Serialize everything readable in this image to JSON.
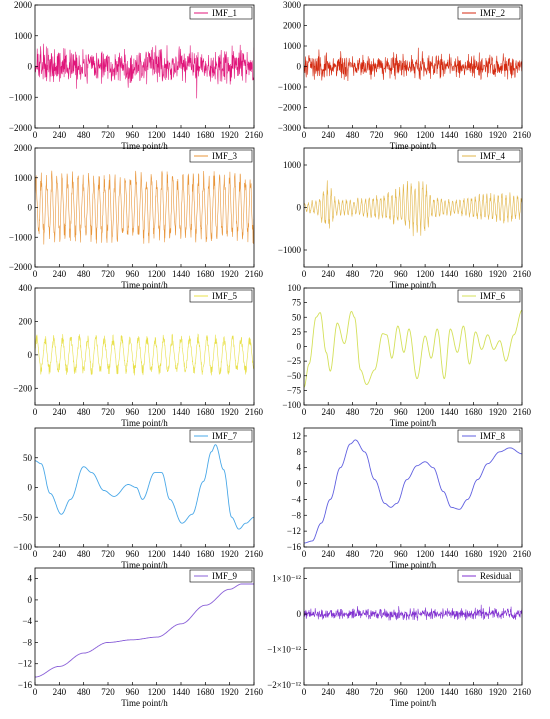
{
  "chart_data": [
    {
      "type": "line",
      "name": "IMF_1",
      "legend": "IMF_1",
      "color": "#e0157a",
      "xlabel": "Time point/h",
      "xlim": [
        0,
        2160
      ],
      "xticks": [
        0,
        240,
        480,
        720,
        960,
        1200,
        1440,
        1680,
        1920,
        2160
      ],
      "ylim": [
        -2000,
        2000
      ],
      "yticks": [
        -2000,
        -1000,
        0,
        1000,
        2000
      ],
      "yticklabels": [
        "−2000",
        "−1000",
        "0",
        "1000",
        "2000"
      ],
      "shape": "noise",
      "amplitude": 650,
      "legend_pos": "top-right"
    },
    {
      "type": "line",
      "name": "IMF_2",
      "legend": "IMF_2",
      "color": "#d42a10",
      "xlabel": "Time point/h",
      "xlim": [
        0,
        2160
      ],
      "xticks": [
        0,
        240,
        480,
        720,
        960,
        1200,
        1440,
        1680,
        1920,
        2160
      ],
      "ylim": [
        -3000,
        3000
      ],
      "yticks": [
        -3000,
        -2000,
        -1000,
        0,
        1000,
        2000,
        3000
      ],
      "yticklabels": [
        "−3000",
        "−2000",
        "−1000",
        "0",
        "1000",
        "2000",
        "3000"
      ],
      "shape": "noise",
      "amplitude": 700,
      "legend_pos": "top-right"
    },
    {
      "type": "line",
      "name": "IMF_3",
      "legend": "IMF_3",
      "color": "#e8953a",
      "xlabel": "Time point/h",
      "xlim": [
        0,
        2160
      ],
      "xticks": [
        0,
        240,
        480,
        720,
        960,
        1200,
        1440,
        1680,
        1920,
        2160
      ],
      "ylim": [
        -2000,
        2000
      ],
      "yticks": [
        -2000,
        -1000,
        0,
        1000,
        2000
      ],
      "yticklabels": [
        "−2000",
        "−1000",
        "0",
        "1000",
        "2000"
      ],
      "shape": "osc",
      "period": 52,
      "amplitude": 1100,
      "legend_pos": "top-right"
    },
    {
      "type": "line",
      "name": "IMF_4",
      "legend": "IMF_4",
      "color": "#e2b64a",
      "xlabel": "Time point/h",
      "xlim": [
        0,
        2160
      ],
      "xticks": [
        0,
        240,
        480,
        720,
        960,
        1200,
        1440,
        1680,
        1920,
        2160
      ],
      "ylim": [
        -1400,
        1400
      ],
      "yticks": [
        -1000,
        0,
        1000
      ],
      "yticklabels": [
        "−1000",
        "0",
        "1000"
      ],
      "shape": "osc",
      "period": 38,
      "amplitude": 420,
      "env": [
        [
          0,
          0.2
        ],
        [
          150,
          0.5
        ],
        [
          220,
          1.4
        ],
        [
          260,
          1.1
        ],
        [
          320,
          0.4
        ],
        [
          600,
          0.5
        ],
        [
          900,
          0.9
        ],
        [
          1050,
          1.4
        ],
        [
          1200,
          1.5
        ],
        [
          1260,
          0.6
        ],
        [
          1500,
          0.4
        ],
        [
          1750,
          0.7
        ],
        [
          2000,
          0.8
        ],
        [
          2160,
          0.6
        ]
      ],
      "legend_pos": "top-right"
    },
    {
      "type": "line",
      "name": "IMF_5",
      "legend": "IMF_5",
      "color": "#e8e04a",
      "xlabel": "Time point/h",
      "xlim": [
        0,
        2160
      ],
      "xticks": [
        0,
        240,
        480,
        720,
        960,
        1200,
        1440,
        1680,
        1920,
        2160
      ],
      "ylim": [
        -300,
        400
      ],
      "yticks": [
        -200,
        0,
        200,
        400
      ],
      "yticklabels": [
        "−200",
        "0",
        "200",
        "400"
      ],
      "shape": "osc",
      "period": 85,
      "amplitude": 110,
      "legend_pos": "top-right"
    },
    {
      "type": "line",
      "name": "IMF_6",
      "legend": "IMF_6",
      "color": "#d4e05a",
      "xlabel": "Time point/h",
      "xlim": [
        0,
        2160
      ],
      "xticks": [
        0,
        240,
        480,
        720,
        960,
        1200,
        1440,
        1680,
        1920,
        2160
      ],
      "ylim": [
        -100,
        100
      ],
      "yticks": [
        -100,
        -75,
        -50,
        -25,
        0,
        25,
        50,
        75,
        100
      ],
      "yticklabels": [
        "−100",
        "−75",
        "−50",
        "−25",
        "0",
        "25",
        "50",
        "75",
        "100"
      ],
      "shape": "points",
      "points": [
        [
          0,
          -70
        ],
        [
          50,
          -30
        ],
        [
          120,
          50
        ],
        [
          160,
          58
        ],
        [
          220,
          -10
        ],
        [
          260,
          -42
        ],
        [
          330,
          40
        ],
        [
          400,
          5
        ],
        [
          470,
          60
        ],
        [
          500,
          50
        ],
        [
          560,
          -40
        ],
        [
          620,
          -65
        ],
        [
          700,
          -40
        ],
        [
          780,
          22
        ],
        [
          820,
          20
        ],
        [
          870,
          -20
        ],
        [
          930,
          35
        ],
        [
          990,
          -10
        ],
        [
          1040,
          30
        ],
        [
          1120,
          -55
        ],
        [
          1200,
          18
        ],
        [
          1260,
          -20
        ],
        [
          1320,
          30
        ],
        [
          1390,
          -55
        ],
        [
          1450,
          30
        ],
        [
          1520,
          -10
        ],
        [
          1580,
          35
        ],
        [
          1640,
          -30
        ],
        [
          1700,
          25
        ],
        [
          1760,
          -5
        ],
        [
          1820,
          20
        ],
        [
          1880,
          -5
        ],
        [
          1940,
          10
        ],
        [
          2000,
          -25
        ],
        [
          2080,
          20
        ],
        [
          2160,
          62
        ]
      ],
      "legend_pos": "top-right"
    },
    {
      "type": "line",
      "name": "IMF_7",
      "legend": "IMF_7",
      "color": "#4aa8e8",
      "xlabel": "Time point/h",
      "xlim": [
        0,
        2160
      ],
      "xticks": [
        0,
        240,
        480,
        720,
        960,
        1200,
        1440,
        1680,
        1920,
        2160
      ],
      "ylim": [
        -100,
        100
      ],
      "yticks": [
        -100,
        -50,
        0,
        50
      ],
      "yticklabels": [
        "−100",
        "−50",
        "0",
        "50"
      ],
      "shape": "points",
      "points": [
        [
          0,
          45
        ],
        [
          60,
          40
        ],
        [
          150,
          -10
        ],
        [
          260,
          -45
        ],
        [
          350,
          -20
        ],
        [
          480,
          35
        ],
        [
          560,
          25
        ],
        [
          680,
          -5
        ],
        [
          780,
          -15
        ],
        [
          920,
          5
        ],
        [
          1000,
          0
        ],
        [
          1060,
          -20
        ],
        [
          1180,
          25
        ],
        [
          1250,
          25
        ],
        [
          1330,
          -20
        ],
        [
          1450,
          -60
        ],
        [
          1550,
          -45
        ],
        [
          1660,
          10
        ],
        [
          1740,
          60
        ],
        [
          1780,
          72
        ],
        [
          1860,
          30
        ],
        [
          1940,
          -50
        ],
        [
          2010,
          -70
        ],
        [
          2080,
          -60
        ],
        [
          2160,
          -50
        ]
      ],
      "legend_pos": "top-right"
    },
    {
      "type": "line",
      "name": "IMF_8",
      "legend": "IMF_8",
      "color": "#6060e0",
      "xlabel": "Time point/h",
      "xlim": [
        0,
        2160
      ],
      "xticks": [
        0,
        240,
        480,
        720,
        960,
        1200,
        1440,
        1680,
        1920,
        2160
      ],
      "ylim": [
        -16,
        14
      ],
      "yticks": [
        -16,
        -12,
        -8,
        -4,
        0,
        4,
        8,
        12
      ],
      "yticklabels": [
        "−16",
        "−12",
        "−8",
        "−4",
        "0",
        "4",
        "8",
        "12"
      ],
      "shape": "points",
      "points": [
        [
          0,
          -15
        ],
        [
          80,
          -14.5
        ],
        [
          170,
          -10
        ],
        [
          260,
          -4
        ],
        [
          360,
          4
        ],
        [
          460,
          10
        ],
        [
          510,
          11
        ],
        [
          600,
          8
        ],
        [
          700,
          1
        ],
        [
          800,
          -5
        ],
        [
          860,
          -6
        ],
        [
          920,
          -5
        ],
        [
          1020,
          1
        ],
        [
          1120,
          4.5
        ],
        [
          1200,
          5.5
        ],
        [
          1280,
          4
        ],
        [
          1380,
          -2
        ],
        [
          1460,
          -6
        ],
        [
          1540,
          -6.5
        ],
        [
          1620,
          -4
        ],
        [
          1720,
          1
        ],
        [
          1820,
          5
        ],
        [
          1940,
          8
        ],
        [
          2040,
          9
        ],
        [
          2160,
          7.5
        ]
      ],
      "legend_pos": "top-right"
    },
    {
      "type": "line",
      "name": "IMF_9",
      "legend": "IMF_9",
      "color": "#8a60d8",
      "xlabel": "Time point/h",
      "xlim": [
        0,
        2160
      ],
      "xticks": [
        0,
        240,
        480,
        720,
        960,
        1200,
        1440,
        1680,
        1920,
        2160
      ],
      "ylim": [
        -16,
        6
      ],
      "yticks": [
        -16,
        -12,
        -8,
        -4,
        0,
        4
      ],
      "yticklabels": [
        "−16",
        "−12",
        "−8",
        "−4",
        "0",
        "4"
      ],
      "shape": "points",
      "points": [
        [
          0,
          -14.5
        ],
        [
          240,
          -12.5
        ],
        [
          480,
          -10
        ],
        [
          720,
          -8
        ],
        [
          960,
          -7.5
        ],
        [
          1200,
          -7
        ],
        [
          1440,
          -4.5
        ],
        [
          1680,
          -1
        ],
        [
          1920,
          2
        ],
        [
          2040,
          3
        ],
        [
          2160,
          3
        ]
      ],
      "legend_pos": "top-right"
    },
    {
      "type": "line",
      "name": "Residual",
      "legend": "Residual",
      "color": "#8030d0",
      "xlabel": "Time point/h",
      "xlim": [
        0,
        2160
      ],
      "xticks": [
        0,
        240,
        480,
        720,
        960,
        1200,
        1440,
        1680,
        1920,
        2160
      ],
      "ylim": [
        -2,
        1.3
      ],
      "yticks": [
        -2,
        -1,
        0,
        1
      ],
      "yticklabels": [
        "−2×10⁻¹²",
        "−1×10⁻¹²",
        "0",
        "1×10⁻¹²"
      ],
      "shape": "noise",
      "amplitude": 0.18,
      "legend_pos": "top-right"
    }
  ]
}
